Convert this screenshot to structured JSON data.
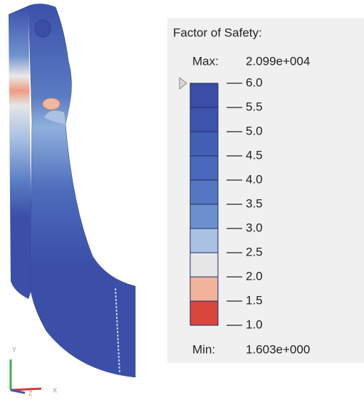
{
  "legend": {
    "title": "Factor of Safety:",
    "max_label": "Max:",
    "max_value": "2.099e+004",
    "min_label": "Min:",
    "min_value": "1.603e+000",
    "ticks": [
      {
        "value": 6,
        "label": "6.0"
      },
      {
        "value": 5.5,
        "label": "5.5"
      },
      {
        "value": 5,
        "label": "5.0"
      },
      {
        "value": 4.5,
        "label": "4.5"
      },
      {
        "value": 4,
        "label": "4.0"
      },
      {
        "value": 3.5,
        "label": "3.5"
      },
      {
        "value": 3,
        "label": "3.0"
      },
      {
        "value": 2.5,
        "label": "2.5"
      },
      {
        "value": 2,
        "label": "2.0"
      },
      {
        "value": 1.5,
        "label": "1.5"
      },
      {
        "value": 1,
        "label": "1.0"
      }
    ],
    "band_colors": [
      "#3a4ea7",
      "#3e54ad",
      "#4460b4",
      "#4a69ba",
      "#5577c2",
      "#6b90cd",
      "#a9c1e3",
      "#e6e6e6",
      "#f2b49b",
      "#d8463c"
    ]
  },
  "triad": {
    "y": "Y",
    "z": "Z",
    "x": "X"
  }
}
